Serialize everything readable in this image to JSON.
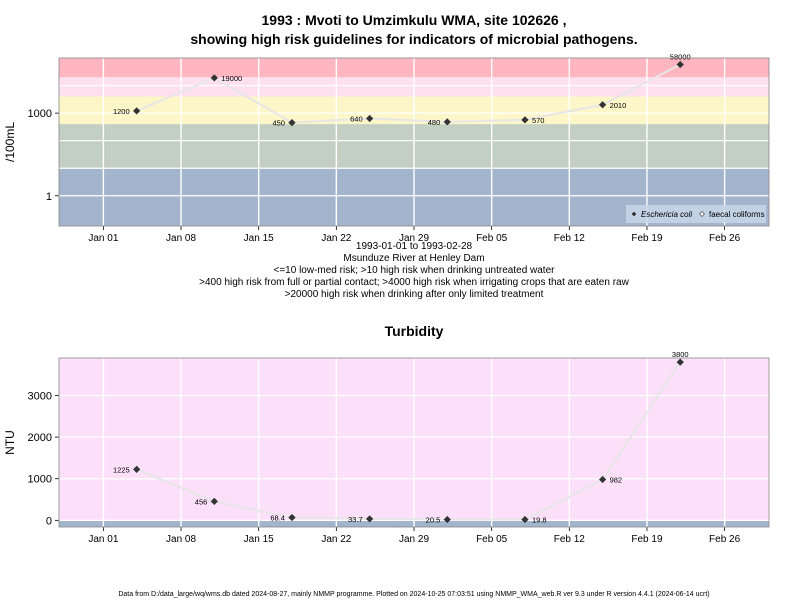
{
  "title_line1": "1993 : Mvoti to Umzimkulu WMA, site 102626 ,",
  "title_line2": "showing high risk guidelines for indicators of microbial pathogens.",
  "subtitle_lines": [
    "1993-01-01 to 1993-02-28",
    "Msunduze River at Henley Dam",
    "<=10 low-med risk; >10 high risk when drinking untreated water",
    ">400 high risk from full or partial contact; >4000 high risk when irrigating crops that are eaten raw",
    ">20000 high risk when drinking after only limited treatment"
  ],
  "footer": "Data from D:/data_large/wq/wms.db dated 2024-08-27, mainly NMMP programme. Plotted on 2024-10-25 07:03:51 using NMMP_WMA_web.R ver 9.3 under R version 4.4.1 (2024-06-14 ucrt)",
  "colors": {
    "band_top": "#ffb6c1",
    "band_pink": "#ffe0ef",
    "band_yellow": "#fdf6c8",
    "band_green": "#c3cfc3",
    "band_blue": "#a3b5cd",
    "turbidity_bg": "#fce0fa",
    "series_line": "#e6e6e6",
    "point": "#333333",
    "grid": "#ffffff"
  },
  "chart_data": [
    {
      "type": "scatter",
      "title": "",
      "ylabel": "/100mL",
      "yscale": "log",
      "x_ticks": [
        "Jan 01",
        "Jan 08",
        "Jan 15",
        "Jan 22",
        "Jan 29",
        "Feb 05",
        "Feb 12",
        "Feb 19",
        "Feb 26"
      ],
      "x_tick_dates": [
        "1993-01-01",
        "1993-01-08",
        "1993-01-15",
        "1993-01-22",
        "1993-01-29",
        "1993-02-05",
        "1993-02-12",
        "1993-02-19",
        "1993-02-26"
      ],
      "xlim": [
        "1992-12-28",
        "1993-03-02"
      ],
      "y_ticks": [
        1,
        1000
      ],
      "y_tick_labels": [
        "1",
        "1000"
      ],
      "ylim": [
        0.08,
        100000.0
      ],
      "guidelines": [
        10,
        400,
        4000,
        20000
      ],
      "legend": {
        "position": "bottom-right",
        "entries": [
          "Eschericia coli",
          "faecal coliforms"
        ]
      },
      "series": [
        {
          "name": "Eschericia coli",
          "x": [
            "1993-01-04",
            "1993-01-11",
            "1993-01-18",
            "1993-01-25",
            "1993-02-01",
            "1993-02-08",
            "1993-02-15",
            "1993-02-22"
          ],
          "values": [
            1200,
            19000,
            450,
            640,
            480,
            570,
            2010,
            58000
          ],
          "labels": [
            "1200",
            "19000",
            "450",
            "640",
            "480",
            "570",
            "2010",
            "58000"
          ]
        }
      ]
    },
    {
      "type": "scatter",
      "title": "Turbidity",
      "ylabel": "NTU",
      "x_ticks": [
        "Jan 01",
        "Jan 08",
        "Jan 15",
        "Jan 22",
        "Jan 29",
        "Feb 05",
        "Feb 12",
        "Feb 19",
        "Feb 26"
      ],
      "x_tick_dates": [
        "1993-01-01",
        "1993-01-08",
        "1993-01-15",
        "1993-01-22",
        "1993-01-29",
        "1993-02-05",
        "1993-02-12",
        "1993-02-19",
        "1993-02-26"
      ],
      "xlim": [
        "1992-12-28",
        "1993-03-02"
      ],
      "y_ticks": [
        0,
        1000,
        2000,
        3000
      ],
      "y_tick_labels": [
        "0",
        "1000",
        "2000",
        "3000"
      ],
      "ylim": [
        -160,
        3900
      ],
      "series": [
        {
          "name": "",
          "x": [
            "1993-01-04",
            "1993-01-11",
            "1993-01-18",
            "1993-01-25",
            "1993-02-01",
            "1993-02-08",
            "1993-02-15",
            "1993-02-22"
          ],
          "values": [
            1225,
            456,
            68.4,
            33.7,
            20.5,
            19.8,
            982,
            3800
          ],
          "labels": [
            "1225",
            "456",
            "68.4",
            "33.7",
            "20.5",
            "19.8",
            "982",
            "3800"
          ]
        }
      ]
    }
  ]
}
